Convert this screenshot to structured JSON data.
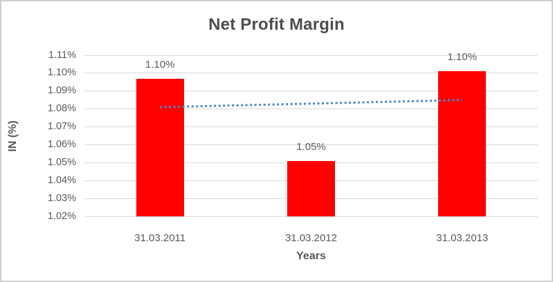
{
  "chart_data": {
    "type": "bar",
    "title": "Net Profit Margin",
    "xlabel": "Years",
    "ylabel": "IN (%)",
    "categories": [
      "31.03.2011",
      "31.03.2012",
      "31.03.2013"
    ],
    "values": [
      1.097,
      1.051,
      1.101
    ],
    "data_labels": [
      "1.10%",
      "1.05%",
      "1.10%"
    ],
    "unit": "%",
    "ylim": [
      1.02,
      1.11
    ],
    "y_tick_step": 0.01,
    "y_tick_labels": [
      "1.11%",
      "1.10%",
      "1.09%",
      "1.08%",
      "1.07%",
      "1.06%",
      "1.05%",
      "1.04%",
      "1.03%",
      "1.02%"
    ],
    "grid": true,
    "legend": false,
    "trendline": {
      "style": "dotted",
      "start_value": 1.081,
      "end_value": 1.085
    },
    "colors": {
      "bar": "#ff0000",
      "trendline": "#4e87c8",
      "title_text": "#4d4d4d",
      "axis_text": "#595959",
      "gridline": "#d9d9d9",
      "chart_border": "#cfcfcf"
    }
  }
}
